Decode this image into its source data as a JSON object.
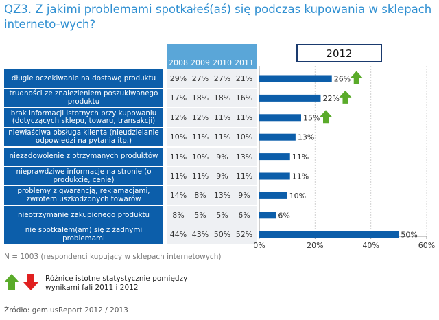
{
  "title": "QZ3. Z jakimi problemami spotkałeś(aś) się podczas kupowania w sklepach interneto-wych?",
  "year_box": "2012",
  "years": [
    "2008",
    "2009",
    "2010",
    "2011"
  ],
  "rows": [
    {
      "label": "długie oczekiwanie na dostawę produktu",
      "vals": [
        "29%",
        "27%",
        "27%",
        "21%"
      ]
    },
    {
      "label": "trudności ze znalezieniem poszukiwanego produktu",
      "vals": [
        "17%",
        "18%",
        "18%",
        "16%"
      ]
    },
    {
      "label": "brak informacji istotnych przy kupowaniu (dotyczących sklepu, towaru, transakcji)",
      "vals": [
        "12%",
        "12%",
        "11%",
        "11%"
      ]
    },
    {
      "label": "niewłaściwa obsługa klienta (nieudzielanie odpowiedzi na pytania itp.)",
      "vals": [
        "10%",
        "11%",
        "11%",
        "10%"
      ]
    },
    {
      "label": "niezadowolenie z otrzymanych produktów",
      "vals": [
        "11%",
        "10%",
        "9%",
        "13%"
      ]
    },
    {
      "label": "nieprawdziwe informacje na stronie (o produkcie, cenie)",
      "vals": [
        "11%",
        "11%",
        "9%",
        "11%"
      ]
    },
    {
      "label": "problemy z gwarancją, reklamacjami, zwrotem uszkodzonych towarów",
      "vals": [
        "14%",
        "8%",
        "13%",
        "9%"
      ]
    },
    {
      "label": "nieotrzymanie zakupionego produktu",
      "vals": [
        "8%",
        "5%",
        "5%",
        "6%"
      ]
    },
    {
      "label": "nie spotkałem(am) się z żadnymi problemami",
      "vals": [
        "44%",
        "43%",
        "50%",
        "52%"
      ]
    }
  ],
  "chart_data": {
    "type": "bar",
    "orientation": "horizontal",
    "title": "2012",
    "categories": [
      "długie oczekiwanie na dostawę produktu",
      "trudności ze znalezieniem poszukiwanego produktu",
      "brak informacji istotnych przy kupowaniu (dotyczących sklepu, towaru, transakcji)",
      "niewłaściwa obsługa klienta (nieudzielanie odpowiedzi na pytania itp.)",
      "niezadowolenie z otrzymanych produktów",
      "nieprawdziwe informacje na stronie (o produkcie, cenie)",
      "problemy z gwarancją, reklamacjami, zwrotem uszkodzonych towarów",
      "nieotrzymanie zakupionego produktu",
      "nie spotkałem(am) się z żadnymi problemami"
    ],
    "values": [
      26,
      22,
      15,
      13,
      11,
      11,
      10,
      6,
      50
    ],
    "value_labels": [
      "26%",
      "22%",
      "15%",
      "13%",
      "11%",
      "11%",
      "10%",
      "6%",
      "50%"
    ],
    "significant_increase": [
      true,
      true,
      true,
      false,
      false,
      false,
      false,
      false,
      false
    ],
    "xlim": [
      0,
      60
    ],
    "xticks": [
      0,
      20,
      40,
      60
    ],
    "xtick_labels": [
      "0%",
      "20%",
      "40%",
      "60%"
    ],
    "color": "#0c5eaa",
    "arrow_up_color": "#5aab2a",
    "arrow_down_color": "#e02020"
  },
  "note": "N = 1003 (respondenci kupujący w sklepach internetowych)",
  "legend": {
    "line1": "Różnice istotne statystycznie pomiędzy",
    "line2": "wynikami fali 2011 i 2012"
  },
  "source": "Źródło: gemiusReport 2012 / 2013"
}
